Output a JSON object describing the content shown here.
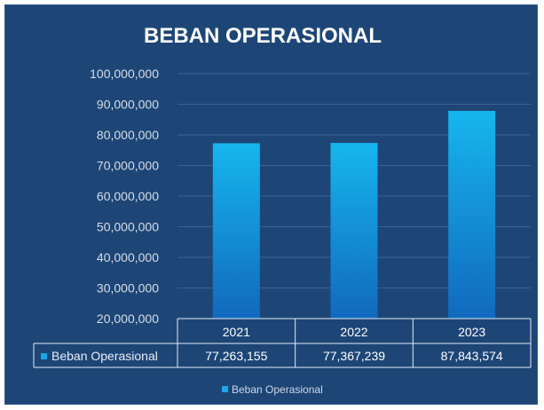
{
  "chart_data": {
    "type": "bar",
    "title": "BEBAN OPERASIONAL",
    "categories": [
      "2021",
      "2022",
      "2023"
    ],
    "series": [
      {
        "name": "Beban Operasional",
        "values": [
          77263155,
          77367239,
          87843574
        ],
        "value_labels": [
          "77,263,155",
          "77,367,239",
          "87,843,574"
        ]
      }
    ],
    "ylim": [
      20000000,
      100000000
    ],
    "yticks": [
      20000000,
      30000000,
      40000000,
      50000000,
      60000000,
      70000000,
      80000000,
      90000000,
      100000000
    ],
    "ytick_labels": [
      "20,000,000",
      "30,000,000",
      "40,000,000",
      "50,000,000",
      "60,000,000",
      "70,000,000",
      "80,000,000",
      "90,000,000",
      "100,000,000"
    ],
    "grid": true,
    "data_table": true,
    "legend_position": "bottom",
    "legend_label": "Beban Operasional",
    "colors": {
      "background": "#1d4677",
      "bar_top": "#16b6ee",
      "bar_bottom": "#1169bd",
      "legend_swatch": "#1ea6ea",
      "text": "#ffffff",
      "axis_text": "#d6dde8",
      "grid": "#3a6294"
    }
  }
}
